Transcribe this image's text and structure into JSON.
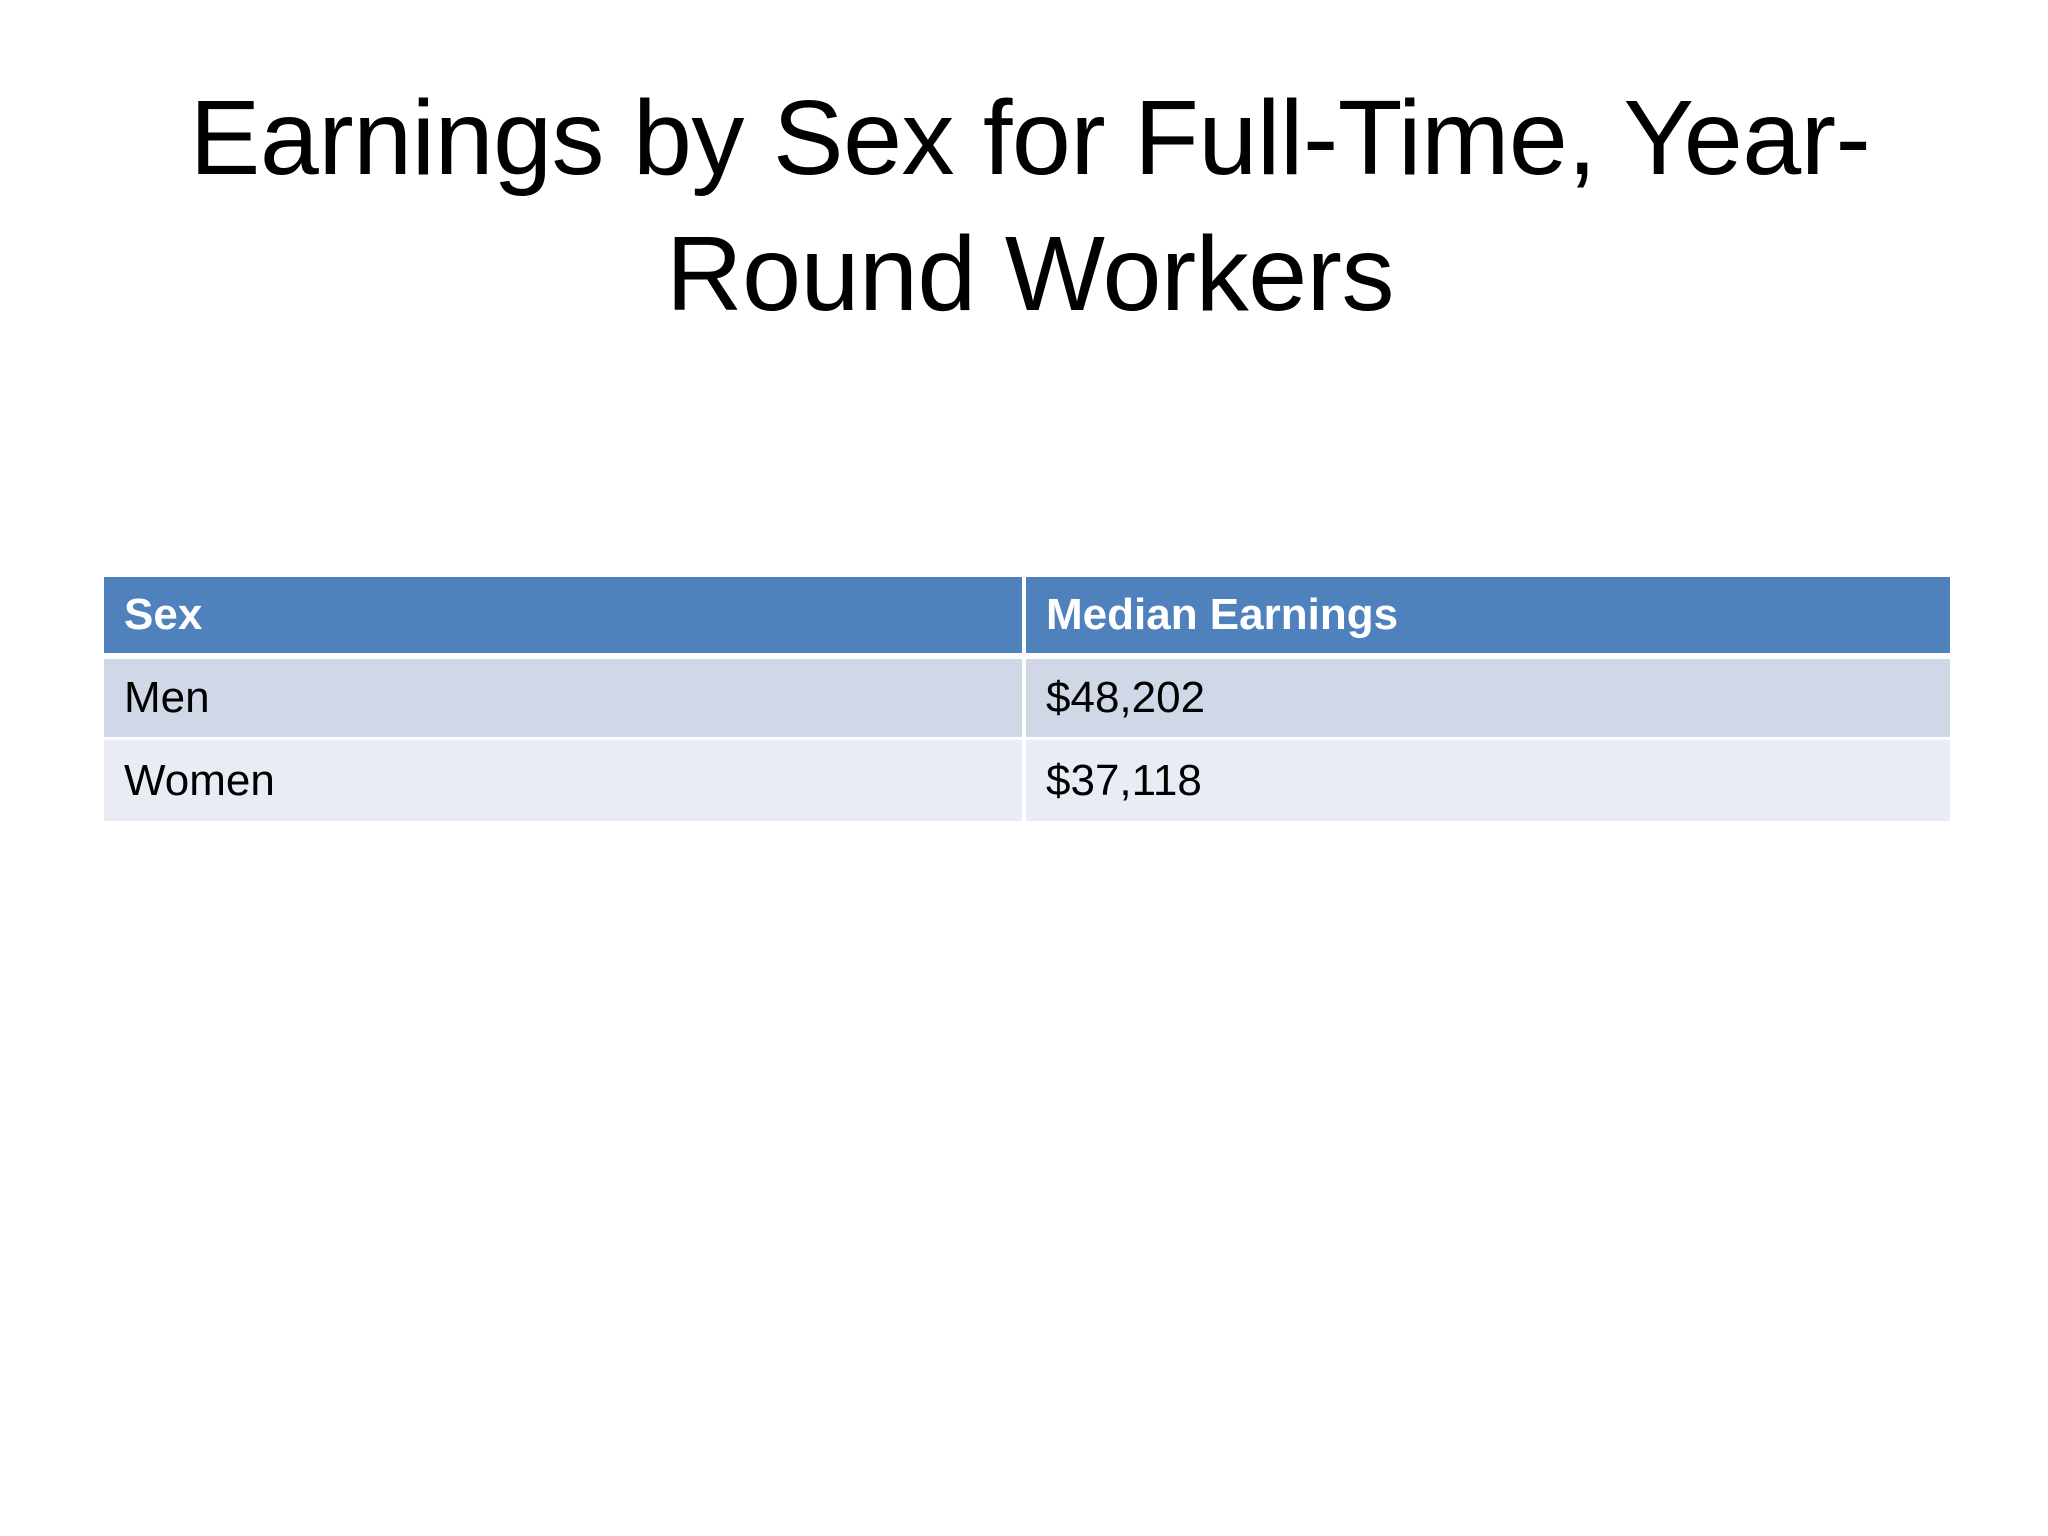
{
  "slide": {
    "title_line1": "Earnings by Sex for Full-Time, Year-",
    "title_line2": "Round Workers"
  },
  "table": {
    "headers": [
      "Sex",
      "Median Earnings"
    ],
    "rows": [
      [
        "Men",
        "$48,202"
      ],
      [
        "Women",
        "$37,118"
      ]
    ]
  },
  "colors": {
    "header_bg": "#4f81bd",
    "row_odd_bg": "#d0d8e8",
    "row_even_bg": "#e9ecf5"
  }
}
